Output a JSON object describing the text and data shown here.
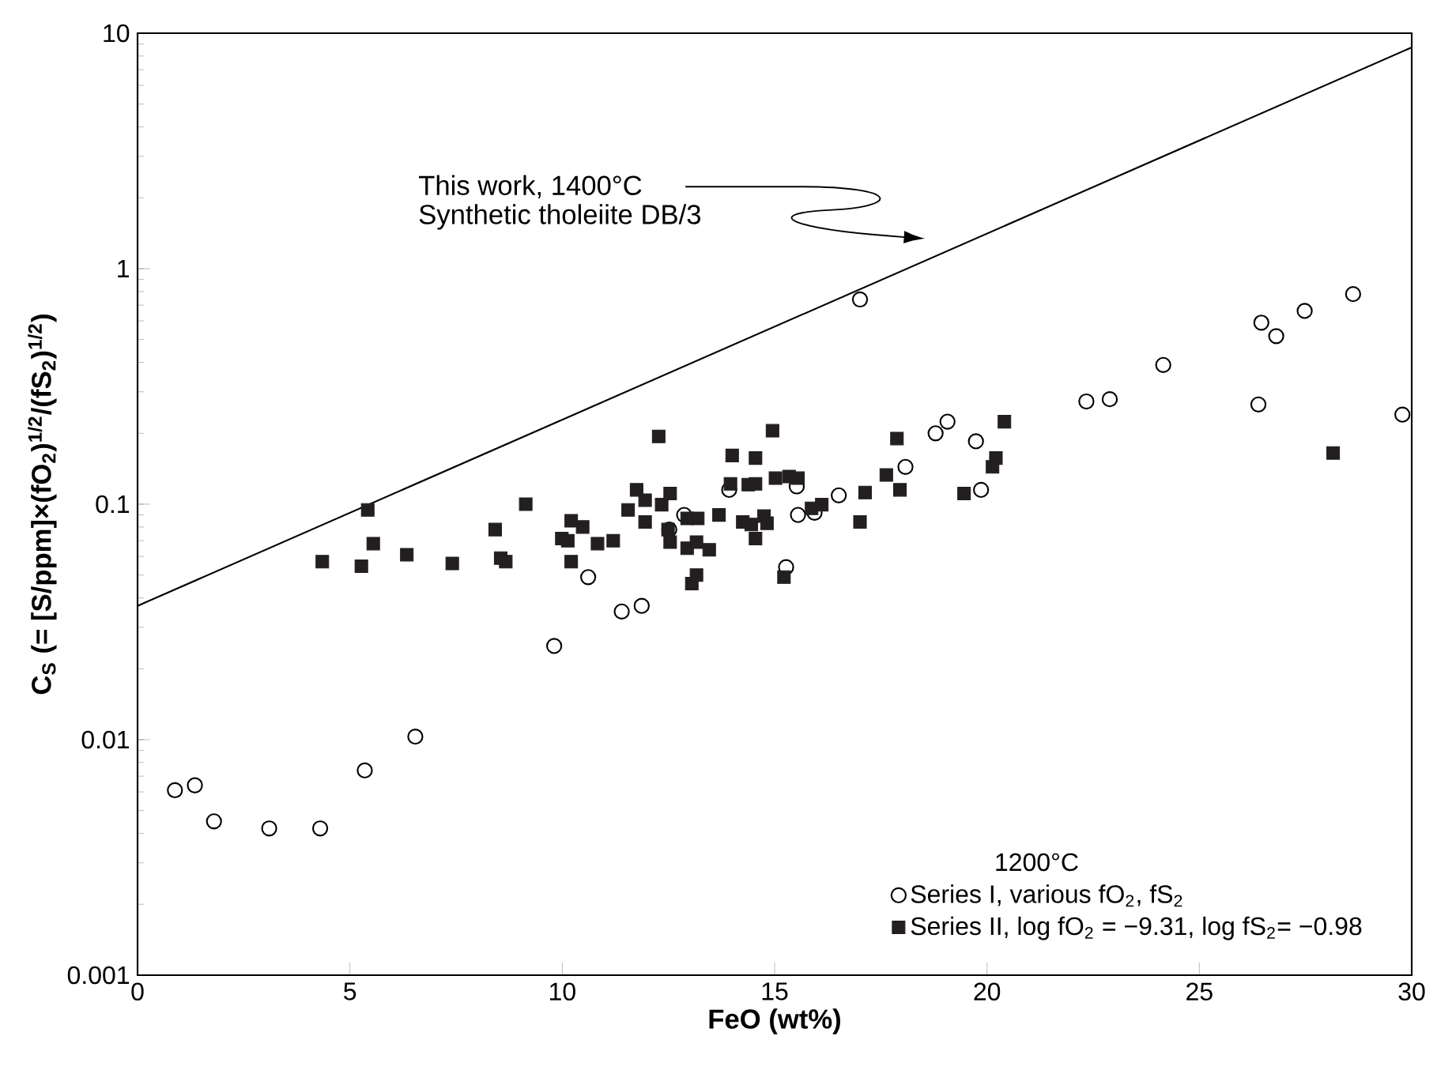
{
  "chart_data": {
    "type": "scatter",
    "xlabel": "FeO (wt%)",
    "ylabel": "C$_{S}$ (= [S/ppm]×(fO$_{2}$)$^{1/2}$/(fS$_{2}$)$^{1/2}$)",
    "xlim": [
      0,
      30
    ],
    "ylim": [
      0.001,
      10
    ],
    "xticks": [
      0,
      5,
      10,
      15,
      20,
      25,
      30
    ],
    "yticks": [
      0.001,
      0.01,
      0.1,
      1,
      10
    ],
    "log": "y",
    "grid": false,
    "legend": "bottom right",
    "legend_title": "1200°C",
    "annotations": [
      "This work, 1400°C",
      "Synthetic tholeiite DB/3"
    ],
    "series": [
      {
        "type": "line",
        "color": "#000000",
        "marker": "none",
        "line_style": "solid",
        "x": [
          0,
          30
        ],
        "values": [
          0.037,
          8.7
        ]
      },
      {
        "name": "Series I, various fO$_{2}$, fS$_{2}$",
        "color": "#000000",
        "marker": "circle",
        "x": [
          0.88,
          1.35,
          1.8,
          3.1,
          4.3,
          5.35,
          6.54,
          9.81,
          10.61,
          11.4,
          11.87,
          12.52,
          12.87,
          13.93,
          15.27,
          15.52,
          15.55,
          15.94,
          16.51,
          17.01,
          18.08,
          18.79,
          19.07,
          19.74,
          19.86,
          22.34,
          22.89,
          24.15,
          26.39,
          26.46,
          26.81,
          27.48,
          28.62,
          29.78
        ],
        "values": [
          0.0061,
          0.0064,
          0.0045,
          0.0042,
          0.0042,
          0.0074,
          0.0103,
          0.025,
          0.049,
          0.035,
          0.037,
          0.078,
          0.09,
          0.115,
          0.054,
          0.119,
          0.09,
          0.092,
          0.109,
          0.74,
          0.144,
          0.2,
          0.224,
          0.185,
          0.115,
          0.273,
          0.279,
          0.39,
          0.265,
          0.59,
          0.517,
          0.662,
          0.78,
          0.24
        ]
      },
      {
        "name": "Series II, log fO$_{2}$ = −9.31, log fS$_{2}$= −0.98",
        "color": "#231f20",
        "marker": "square",
        "x": [
          4.35,
          5.27,
          5.42,
          5.55,
          6.34,
          7.41,
          8.42,
          8.55,
          8.67,
          9.14,
          9.99,
          10.13,
          10.21,
          10.48,
          10.21,
          10.83,
          11.2,
          12.27,
          11.75,
          11.95,
          11.55,
          11.95,
          12.34,
          12.54,
          12.49,
          12.54,
          12.94,
          13.16,
          13.46,
          13.05,
          13.16,
          12.94,
          13.19,
          13.69,
          13.96,
          14.0,
          14.55,
          14.38,
          14.55,
          14.25,
          14.45,
          14.75,
          14.82,
          14.55,
          14.95,
          15.02,
          15.34,
          15.55,
          15.22,
          15.87,
          16.11,
          17.13,
          17.01,
          17.63,
          17.88,
          17.95,
          20.41,
          20.21,
          20.13,
          19.46,
          28.15
        ],
        "values": [
          0.057,
          0.0545,
          0.0945,
          0.068,
          0.061,
          0.056,
          0.078,
          0.059,
          0.057,
          0.1,
          0.0715,
          0.07,
          0.085,
          0.08,
          0.057,
          0.068,
          0.07,
          0.194,
          0.115,
          0.104,
          0.0945,
          0.084,
          0.0995,
          0.111,
          0.078,
          0.069,
          0.065,
          0.069,
          0.064,
          0.046,
          0.05,
          0.087,
          0.087,
          0.09,
          0.122,
          0.161,
          0.157,
          0.121,
          0.122,
          0.084,
          0.082,
          0.089,
          0.083,
          0.0715,
          0.205,
          0.129,
          0.131,
          0.129,
          0.049,
          0.096,
          0.0995,
          0.112,
          0.084,
          0.133,
          0.19,
          0.115,
          0.224,
          0.157,
          0.144,
          0.111,
          0.165
        ]
      }
    ]
  }
}
